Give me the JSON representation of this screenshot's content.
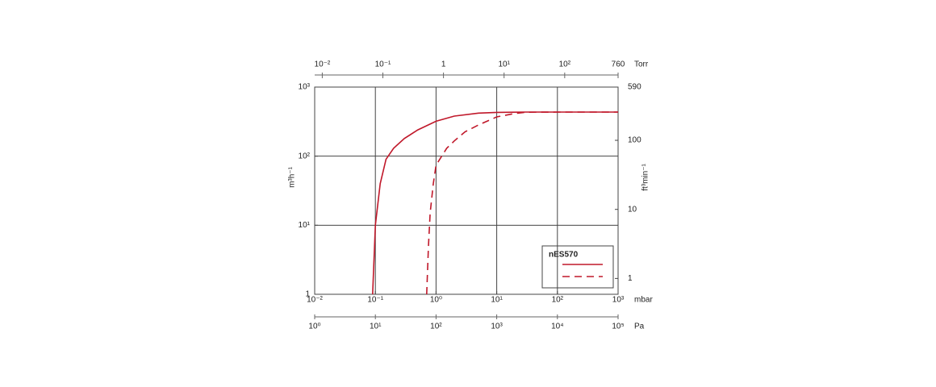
{
  "chart_data": {
    "type": "line",
    "xscale": "log",
    "yscale": "log",
    "xlim": [
      0.01,
      1000
    ],
    "xticks": [
      {
        "value": 0.01,
        "label": "10⁻²"
      },
      {
        "value": 0.1,
        "label": "10⁻¹"
      },
      {
        "value": 1,
        "label": "10⁰"
      },
      {
        "value": 10,
        "label": "10¹"
      },
      {
        "value": 100,
        "label": "10²"
      },
      {
        "value": 1000,
        "label": "10³"
      }
    ],
    "x_label": "mbar",
    "x2lim": [
      0.0075,
      760
    ],
    "x2ticks": [
      {
        "value": 0.01,
        "label": "10⁻²"
      },
      {
        "value": 0.1,
        "label": "10⁻¹"
      },
      1,
      {
        "value": 10,
        "label": "10¹"
      },
      {
        "value": 100,
        "label": "10²"
      },
      760
    ],
    "x2_label": "Torr",
    "x3lim": [
      1,
      100000
    ],
    "x3ticks": [
      {
        "value": 1,
        "label": "10⁰"
      },
      {
        "value": 10,
        "label": "10¹"
      },
      {
        "value": 100,
        "label": "10²"
      },
      {
        "value": 1000,
        "label": "10³"
      },
      {
        "value": 10000,
        "label": "10⁴"
      },
      {
        "value": 100000,
        "label": "10⁵"
      }
    ],
    "x3_label": "Pa",
    "ylim": [
      1,
      1000
    ],
    "yticks": [
      1,
      {
        "value": 10,
        "label": "10¹"
      },
      {
        "value": 100,
        "label": "10²"
      },
      {
        "value": 1000,
        "label": "10³"
      }
    ],
    "y_label": "m³h⁻¹",
    "y2lim": [
      0.59,
      590
    ],
    "y2ticks": [
      1,
      10,
      100,
      590
    ],
    "y2_label": "ft³min⁻¹",
    "grid": true,
    "legend": {
      "title": "nES570",
      "position": "lower right"
    },
    "series": [
      {
        "color": "#c0182a",
        "dash": false,
        "x": [
          0.09,
          0.1,
          0.12,
          0.15,
          0.2,
          0.3,
          0.5,
          1,
          2,
          5,
          10,
          30,
          100,
          1000
        ],
        "values": [
          1,
          10,
          40,
          90,
          130,
          180,
          240,
          320,
          380,
          420,
          430,
          435,
          435,
          435
        ]
      },
      {
        "color": "#c0182a",
        "dash": true,
        "x": [
          0.7,
          0.75,
          0.8,
          0.9,
          1,
          1.5,
          2,
          3,
          5,
          10,
          20,
          30,
          100,
          1000
        ],
        "values": [
          1,
          5,
          15,
          40,
          74,
          130,
          166,
          225,
          283,
          370,
          415,
          432,
          435,
          435
        ]
      }
    ]
  }
}
